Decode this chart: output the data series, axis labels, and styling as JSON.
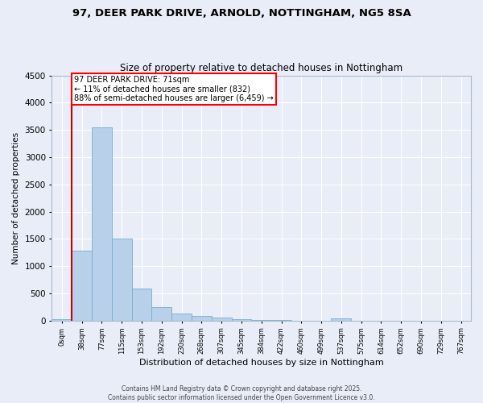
{
  "title": "97, DEER PARK DRIVE, ARNOLD, NOTTINGHAM, NG5 8SA",
  "subtitle": "Size of property relative to detached houses in Nottingham",
  "xlabel": "Distribution of detached houses by size in Nottingham",
  "ylabel": "Number of detached properties",
  "bar_color": "#b8d0ea",
  "bar_edge_color": "#7aadce",
  "background_color": "#e8edf8",
  "grid_color": "#ffffff",
  "bin_labels": [
    "0sqm",
    "38sqm",
    "77sqm",
    "115sqm",
    "153sqm",
    "192sqm",
    "230sqm",
    "268sqm",
    "307sqm",
    "345sqm",
    "384sqm",
    "422sqm",
    "460sqm",
    "499sqm",
    "537sqm",
    "575sqm",
    "614sqm",
    "652sqm",
    "690sqm",
    "729sqm",
    "767sqm"
  ],
  "bar_values": [
    30,
    1280,
    3550,
    1500,
    590,
    250,
    135,
    90,
    50,
    30,
    15,
    5,
    2,
    0,
    35,
    0,
    0,
    0,
    0,
    0,
    0
  ],
  "ylim": [
    0,
    4500
  ],
  "yticks": [
    0,
    500,
    1000,
    1500,
    2000,
    2500,
    3000,
    3500,
    4000,
    4500
  ],
  "property_bin_index": 1,
  "annotation_line1": "97 DEER PARK DRIVE: 71sqm",
  "annotation_line2": "← 11% of detached houses are smaller (832)",
  "annotation_line3": "88% of semi-detached houses are larger (6,459) →",
  "property_line_color": "#cc0000",
  "footer_line1": "Contains HM Land Registry data © Crown copyright and database right 2025.",
  "footer_line2": "Contains public sector information licensed under the Open Government Licence v3.0."
}
